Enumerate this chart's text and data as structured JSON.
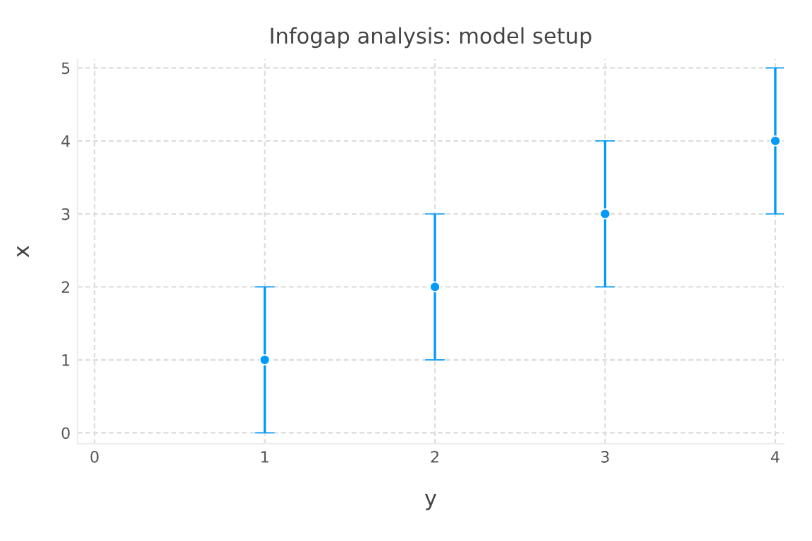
{
  "chart_data": {
    "type": "scatter",
    "title": "Infogap analysis: model setup",
    "xlabel": "y",
    "ylabel": "x",
    "x": [
      1,
      2,
      3,
      4
    ],
    "series": [
      {
        "color": "#009afa",
        "values": [
          1,
          2,
          3,
          4
        ],
        "errors": [
          1,
          1,
          1,
          1
        ]
      }
    ],
    "xlim": [
      -0.1,
      4.05
    ],
    "ylim": [
      -0.15,
      5.12
    ],
    "xticks": [
      0,
      1,
      2,
      3,
      4
    ],
    "yticks": [
      0,
      1,
      2,
      3,
      4,
      5
    ],
    "grid": true,
    "marker": "circle",
    "legend": false
  }
}
